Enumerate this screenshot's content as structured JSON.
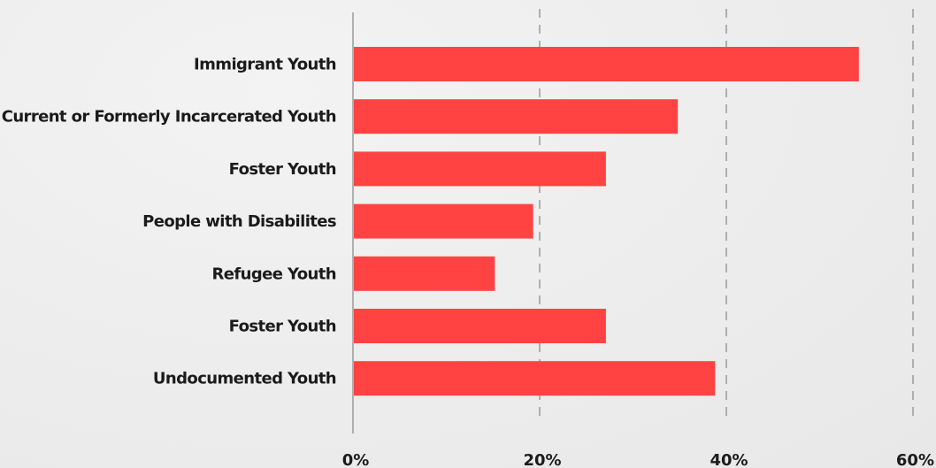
{
  "chart_data": {
    "type": "bar",
    "orientation": "horizontal",
    "categories": [
      "Immigrant Youth",
      "Current or Formerly Incarcerated Youth",
      "Foster Youth",
      "People with Disabilites",
      "Refugee Youth",
      "Foster Youth",
      "Undocumented Youth"
    ],
    "values": [
      54.2,
      34.8,
      27.1,
      19.3,
      15.2,
      27.1,
      38.8
    ],
    "xlim": [
      0,
      60
    ],
    "x_ticks": [
      0,
      20,
      40,
      60
    ],
    "x_tick_labels": [
      "0%",
      "20%",
      "40%",
      "60%"
    ],
    "grid": "vertical dashed",
    "bar_color": "#ff4343",
    "axis_color": "#9a9a9a",
    "text_color": "#1b1b1b"
  }
}
